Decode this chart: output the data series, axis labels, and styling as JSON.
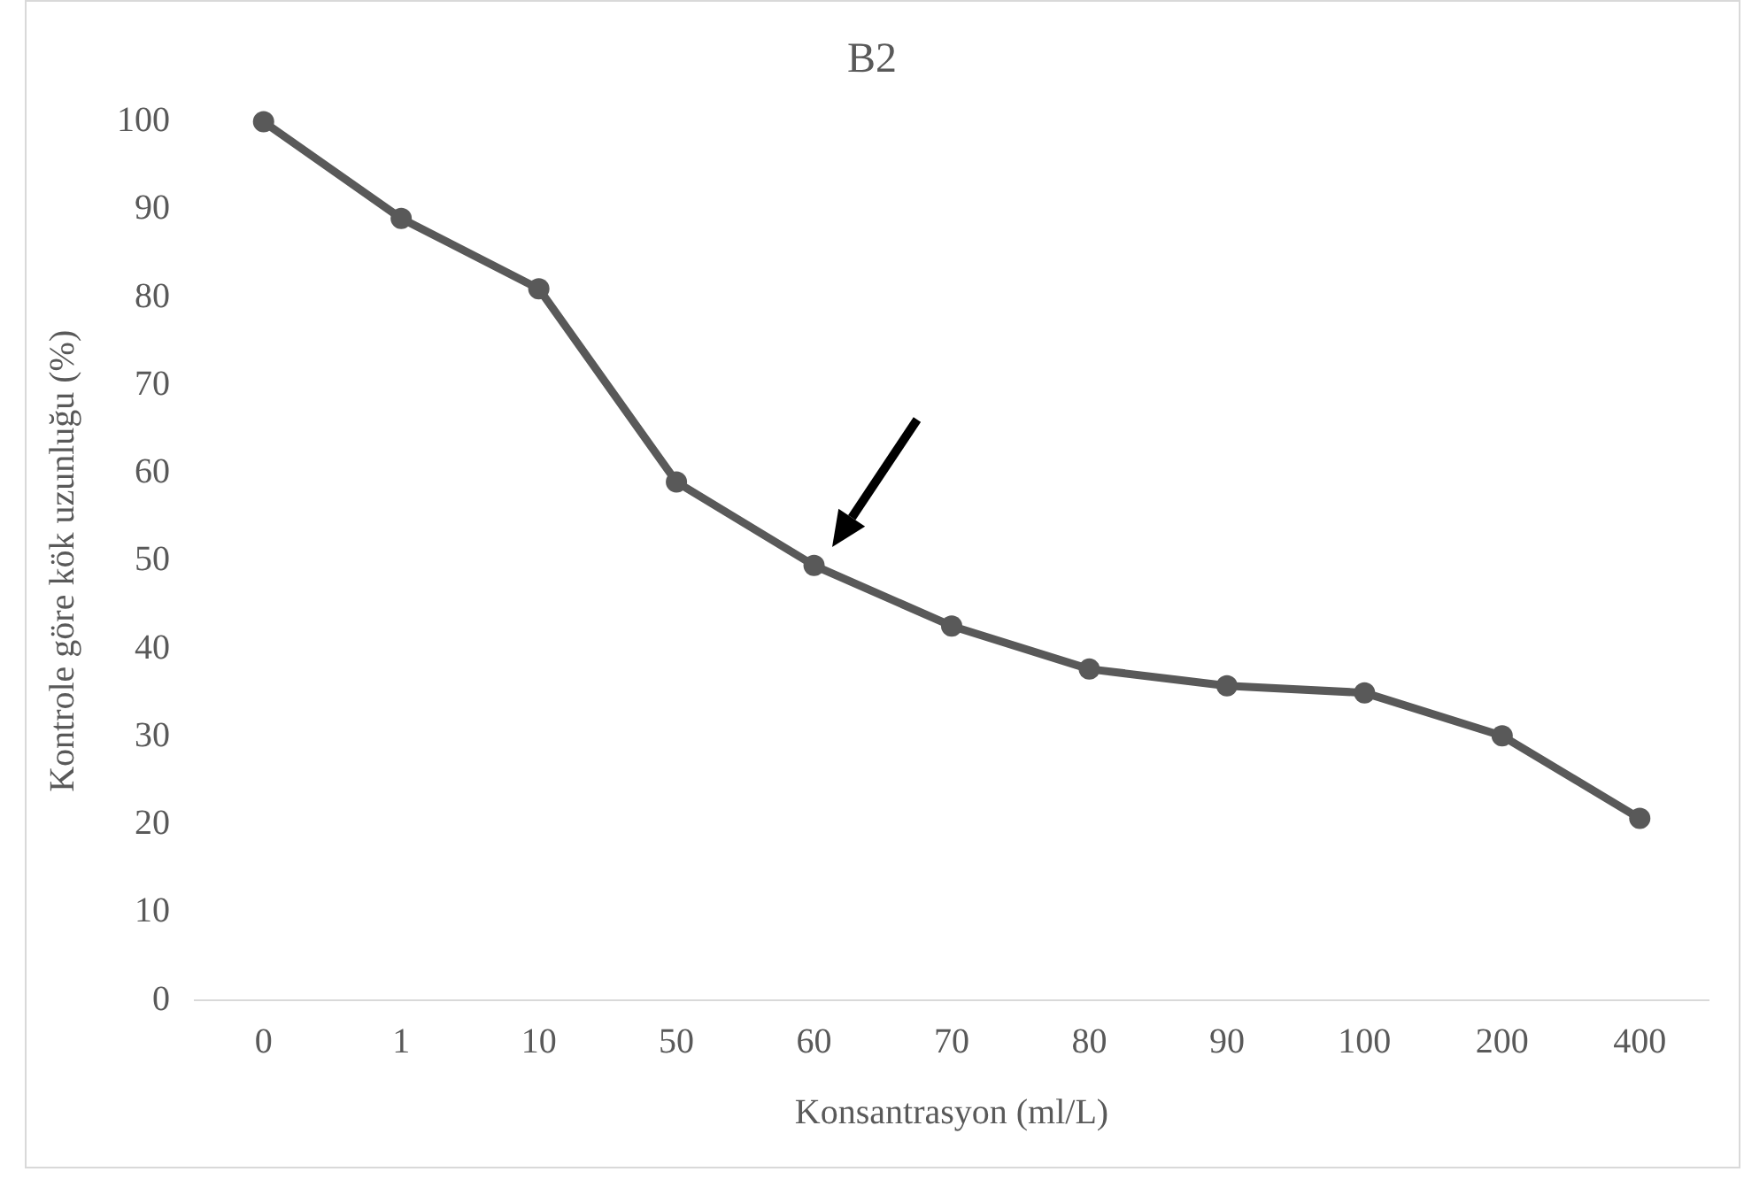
{
  "chart_data": {
    "type": "line",
    "title": "B2",
    "xlabel": "Konsantrasyon (ml/L)",
    "ylabel": "Kontrole göre kök uzunluğu (%)",
    "categories": [
      "0",
      "1",
      "10",
      "50",
      "60",
      "70",
      "80",
      "90",
      "100",
      "200",
      "400"
    ],
    "series": [
      {
        "color": "#595959",
        "values": [
          100,
          89,
          81,
          59,
          49.5,
          42.6,
          37.7,
          35.8,
          35,
          30.1,
          20.7
        ]
      }
    ],
    "ylim": [
      0,
      100
    ],
    "yticks": [
      0,
      10,
      20,
      30,
      40,
      50,
      60,
      70,
      80,
      90,
      100
    ],
    "grid": false,
    "legend": false,
    "marker": "circle",
    "line_style": "solid"
  }
}
